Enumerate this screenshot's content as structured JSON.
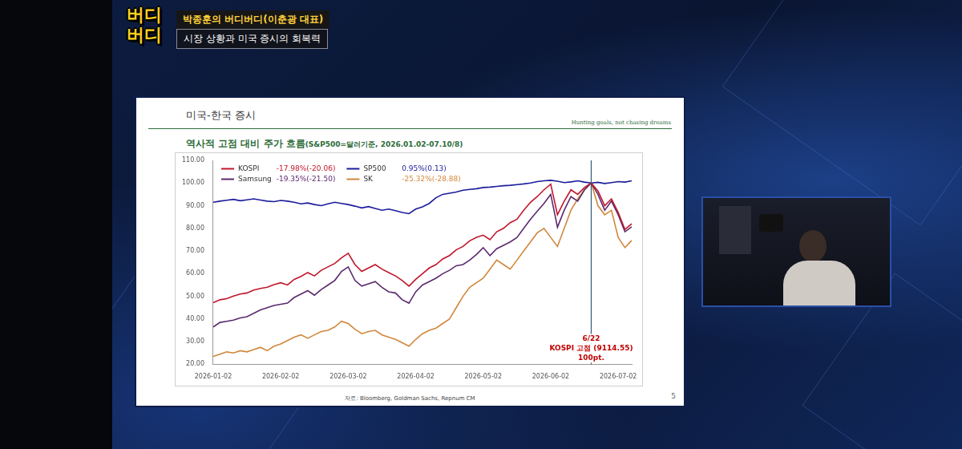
{
  "broadcast": {
    "logo": [
      "버디",
      "버디"
    ],
    "program": "박종훈의 버디버디(이춘광 대표)",
    "episode": "시장 상황과 미국 증시의 회복력"
  },
  "slide": {
    "header": "미국-한국 증시",
    "motto": "Hunting goals, not chasing dreams",
    "source": "자료: Bloomberg, Goldman Sachs, Repnum CM",
    "page": 5
  },
  "chart_data": {
    "type": "line",
    "title": "역사적 고점 대비 주가 흐름",
    "subtitle": "(S&P500=달러기준, 2026.01.02-07.10/8)",
    "categories": [
      "2026-01-02",
      null,
      null,
      null,
      null,
      null,
      null,
      null,
      null,
      null,
      "2026-02-02",
      null,
      null,
      null,
      null,
      null,
      null,
      null,
      null,
      null,
      "2026-03-02",
      null,
      null,
      null,
      null,
      null,
      null,
      null,
      null,
      null,
      "2026-04-02",
      null,
      null,
      null,
      null,
      null,
      null,
      null,
      null,
      null,
      "2026-05-02",
      null,
      null,
      null,
      null,
      null,
      null,
      null,
      null,
      null,
      "2026-06-02",
      null,
      null,
      null,
      null,
      null,
      null,
      null,
      null,
      null,
      "2026-07-02",
      null,
      null
    ],
    "series": [
      {
        "name": "KOSPI",
        "color": "#c0162b",
        "change": "-17.98%(-20.06)",
        "values": [
          47.2,
          48.5,
          49.0,
          50.1,
          51.0,
          51.5,
          52.8,
          53.5,
          54.0,
          55.2,
          56.0,
          55.0,
          57.5,
          58.8,
          60.5,
          59.0,
          61.5,
          63.0,
          64.5,
          67.0,
          69.0,
          64.0,
          61.0,
          62.5,
          64.0,
          62.0,
          60.5,
          59.0,
          57.0,
          54.5,
          57.5,
          60.0,
          62.5,
          64.0,
          66.5,
          68.0,
          70.5,
          72.0,
          74.5,
          76.0,
          77.0,
          75.0,
          78.5,
          80.0,
          82.5,
          84.0,
          88.0,
          91.5,
          94.0,
          97.0,
          99.5,
          86.0,
          92.0,
          97.0,
          95.0,
          98.0,
          100.0,
          96.5,
          90.0,
          93.0,
          87.0,
          79.5,
          82.02
        ]
      },
      {
        "name": "SP500",
        "color": "#1c1c9c",
        "change": "0.95%(0.13)",
        "values": [
          91.5,
          92.0,
          92.4,
          92.8,
          92.2,
          92.6,
          93.0,
          92.5,
          92.0,
          91.8,
          92.3,
          92.0,
          91.5,
          90.8,
          91.2,
          90.5,
          90.0,
          90.8,
          91.5,
          91.0,
          90.5,
          89.8,
          89.0,
          89.6,
          88.8,
          88.0,
          88.5,
          87.8,
          87.0,
          86.5,
          88.5,
          89.5,
          91.0,
          93.5,
          95.0,
          95.5,
          96.0,
          96.8,
          97.2,
          97.5,
          98.0,
          98.2,
          98.5,
          98.8,
          99.0,
          99.3,
          99.6,
          100.0,
          100.6,
          101.0,
          101.2,
          100.8,
          100.2,
          100.5,
          101.0,
          100.4,
          100.0,
          100.3,
          99.8,
          100.2,
          100.6,
          100.4,
          100.95
        ]
      },
      {
        "name": "Samsung",
        "color": "#5b2a6e",
        "change": "-19.35%(-21.50)",
        "values": [
          36.5,
          38.5,
          39.0,
          39.5,
          40.5,
          41.0,
          42.5,
          44.0,
          45.0,
          46.0,
          46.5,
          47.0,
          49.5,
          51.0,
          52.5,
          50.5,
          53.0,
          55.0,
          57.0,
          61.0,
          63.0,
          57.0,
          54.5,
          55.5,
          56.5,
          54.0,
          52.0,
          51.5,
          48.5,
          47.0,
          52.0,
          55.0,
          56.5,
          58.0,
          60.0,
          61.5,
          63.5,
          64.0,
          66.0,
          68.5,
          71.5,
          68.0,
          71.0,
          72.5,
          74.0,
          76.0,
          80.0,
          84.0,
          87.5,
          91.0,
          95.0,
          80.5,
          88.0,
          94.0,
          92.0,
          97.0,
          100.0,
          95.0,
          88.0,
          92.0,
          86.0,
          78.5,
          80.65
        ]
      },
      {
        "name": "SK",
        "color": "#d1873c",
        "change": "-25.32%(-28.88)",
        "values": [
          23.5,
          24.5,
          25.5,
          25.0,
          26.0,
          25.5,
          26.5,
          27.5,
          26.0,
          28.0,
          29.0,
          30.5,
          32.0,
          33.0,
          31.5,
          33.0,
          34.5,
          35.0,
          36.5,
          39.0,
          38.0,
          35.5,
          33.5,
          34.5,
          35.0,
          33.0,
          32.0,
          31.0,
          29.5,
          28.0,
          31.0,
          33.5,
          35.0,
          36.0,
          38.0,
          40.0,
          45.0,
          50.0,
          54.0,
          56.0,
          58.0,
          62.0,
          66.0,
          64.0,
          62.0,
          66.0,
          70.0,
          74.0,
          78.0,
          80.0,
          76.0,
          72.0,
          80.0,
          88.0,
          93.0,
          97.0,
          100.0,
          90.0,
          86.0,
          88.0,
          76.0,
          71.5,
          74.68
        ]
      }
    ],
    "ylim": [
      20,
      110
    ],
    "yticks": [
      {
        "value": 20,
        "label": "20.00"
      },
      {
        "value": 30,
        "label": "30.00"
      },
      {
        "value": 40,
        "label": "40.00"
      },
      {
        "value": 50,
        "label": "50.00"
      },
      {
        "value": 60,
        "label": "60.00"
      },
      {
        "value": 70,
        "label": "70.00"
      },
      {
        "value": 80,
        "label": "80.00"
      },
      {
        "value": 90,
        "label": "90.00"
      },
      {
        "value": 100,
        "label": "100.00"
      },
      {
        "value": 110,
        "label": "110.00"
      }
    ],
    "grid": false,
    "legend": "upper left",
    "annotations": [
      {
        "x": 56,
        "lines": [
          "6/22",
          "KOSPI 고점 (9114.55)",
          "100pt."
        ]
      }
    ]
  }
}
